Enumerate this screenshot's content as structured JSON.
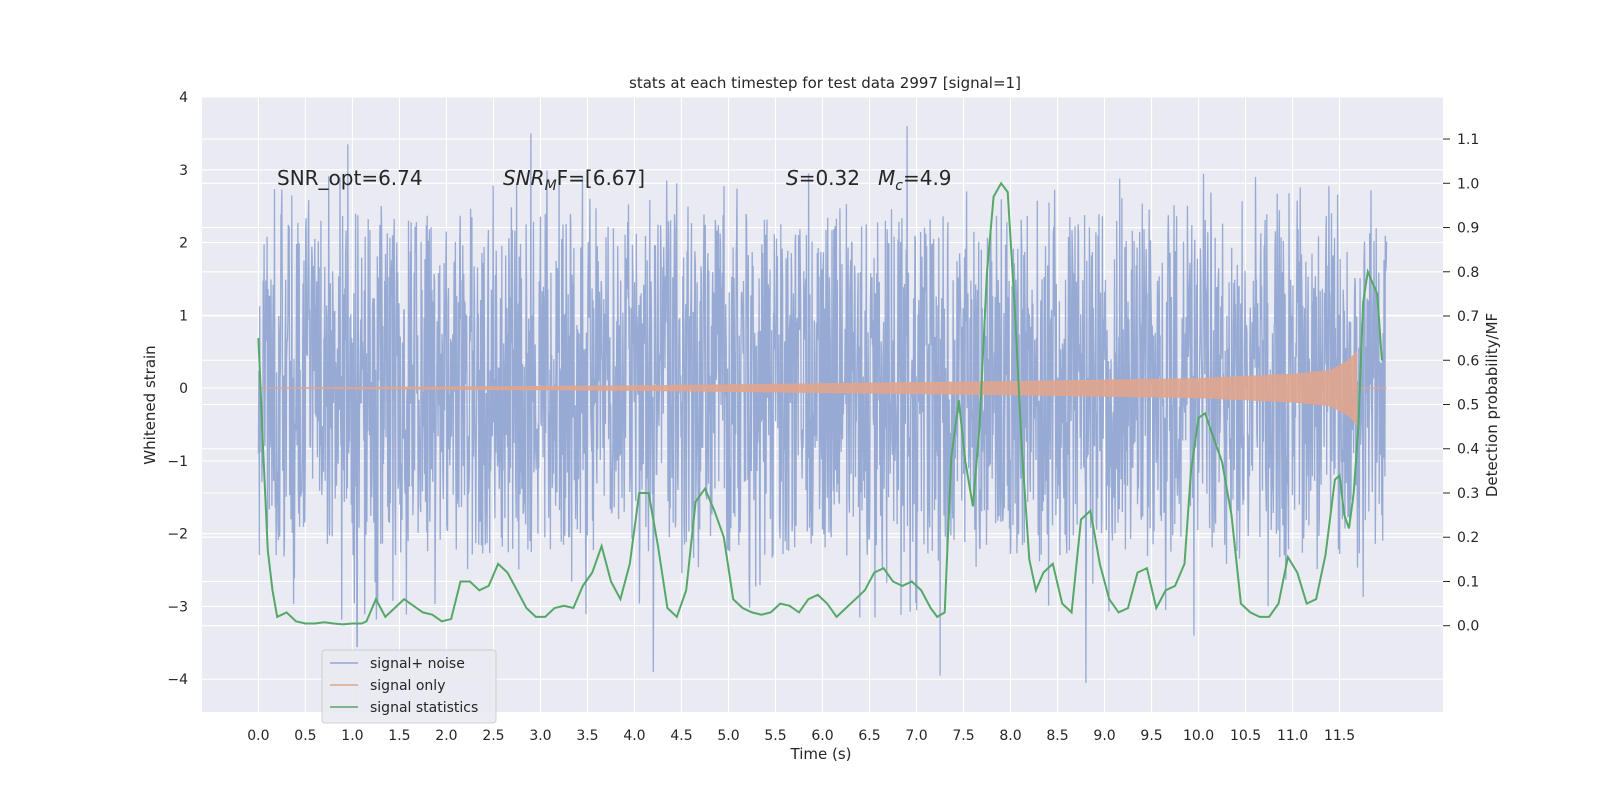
{
  "chart_data": {
    "type": "line",
    "title": "stats at each timestep for test data 2997 [signal=1]",
    "xlabel": "Time (s)",
    "ylabel_left": "Whitened strain",
    "ylabel_right": "Detection probability/MF",
    "xlim": [
      -0.6,
      12.6
    ],
    "ylim_left": [
      -4.45,
      4.0
    ],
    "ylim_right": [
      -0.195,
      1.195
    ],
    "x_ticks": [
      0.0,
      0.5,
      1.0,
      1.5,
      2.0,
      2.5,
      3.0,
      3.5,
      4.0,
      4.5,
      5.0,
      5.5,
      6.0,
      6.5,
      7.0,
      7.5,
      8.0,
      8.5,
      9.0,
      9.5,
      10.0,
      10.5,
      11.0,
      11.5
    ],
    "x_tick_labels": [
      "0.0",
      "0.5",
      "1.0",
      "1.5",
      "2.0",
      "2.5",
      "3.0",
      "3.5",
      "4.0",
      "4.5",
      "5.0",
      "5.5",
      "6.0",
      "6.5",
      "7.0",
      "7.5",
      "8.0",
      "8.5",
      "9.0",
      "9.5",
      "10.0",
      "10.5",
      "11.0",
      "11.5"
    ],
    "y_left_ticks": [
      4,
      3,
      2,
      1,
      0,
      -1,
      -2,
      -3,
      -4
    ],
    "y_left_tick_labels": [
      "4",
      "3",
      "2",
      "1",
      "0",
      "−1",
      "−2",
      "−3",
      "−4"
    ],
    "y_right_ticks": [
      1.1,
      1.0,
      0.9,
      0.8,
      0.7,
      0.6,
      0.5,
      0.4,
      0.3,
      0.2,
      0.1,
      0.0
    ],
    "y_right_tick_labels": [
      "1.1",
      "1.0",
      "0.9",
      "0.8",
      "0.7",
      "0.6",
      "0.5",
      "0.4",
      "0.3",
      "0.2",
      "0.1",
      "0.0"
    ],
    "annotations": {
      "snr_opt": "SNR_opt=6.74",
      "snr_mf_main": "SNR",
      "snr_mf_sub": "M",
      "snr_mf_rest": "F=[6.67]",
      "s_sym": "S",
      "s_val": "=0.32",
      "mc_main": "M",
      "mc_sub": "c",
      "mc_val": "=4.9"
    },
    "legend": {
      "placement": "lower-left",
      "entries": [
        "signal+ noise",
        "signal only",
        "signal statistics"
      ]
    },
    "colors": {
      "background": "#eaeaf2",
      "grid": "#ffffff",
      "noise": "#92a6d2",
      "signal": "#e0a58e",
      "stats": "#55a868"
    },
    "series": [
      {
        "name": "signal+ noise",
        "axis": "left",
        "x_range": [
          0.0,
          12.0
        ],
        "band_typical": [
          -1.6,
          1.6
        ],
        "band_frequent": [
          -2.3,
          2.4
        ],
        "notable_peaks": [
          {
            "t": 0.95,
            "v": 3.35
          },
          {
            "t": 2.9,
            "v": 3.5
          },
          {
            "t": 6.9,
            "v": 3.6
          },
          {
            "t": 1.05,
            "v": -3.55
          },
          {
            "t": 4.2,
            "v": -3.9
          },
          {
            "t": 7.25,
            "v": -3.95
          },
          {
            "t": 8.8,
            "v": -4.05
          },
          {
            "t": 9.95,
            "v": -3.4
          }
        ]
      },
      {
        "name": "signal only",
        "axis": "left",
        "x_range": [
          0.0,
          11.68
        ],
        "envelope": [
          {
            "t": 0.0,
            "a": 0.0
          },
          {
            "t": 2.0,
            "a": 0.015
          },
          {
            "t": 4.0,
            "a": 0.03
          },
          {
            "t": 6.0,
            "a": 0.06
          },
          {
            "t": 8.0,
            "a": 0.09
          },
          {
            "t": 10.0,
            "a": 0.13
          },
          {
            "t": 11.0,
            "a": 0.19
          },
          {
            "t": 11.4,
            "a": 0.24
          },
          {
            "t": 11.6,
            "a": 0.38
          },
          {
            "t": 11.68,
            "a": 0.5
          }
        ]
      },
      {
        "name": "signal statistics",
        "axis": "right",
        "x": [
          0.0,
          0.05,
          0.1,
          0.15,
          0.2,
          0.25,
          0.3,
          0.4,
          0.5,
          0.6,
          0.7,
          0.8,
          0.9,
          1.0,
          1.1,
          1.15,
          1.25,
          1.35,
          1.45,
          1.55,
          1.65,
          1.75,
          1.85,
          1.95,
          2.05,
          2.15,
          2.25,
          2.35,
          2.45,
          2.55,
          2.65,
          2.75,
          2.85,
          2.95,
          3.05,
          3.15,
          3.25,
          3.35,
          3.45,
          3.55,
          3.65,
          3.75,
          3.85,
          3.95,
          4.05,
          4.15,
          4.25,
          4.35,
          4.45,
          4.55,
          4.65,
          4.75,
          4.85,
          4.95,
          5.05,
          5.15,
          5.25,
          5.35,
          5.45,
          5.55,
          5.65,
          5.75,
          5.85,
          5.95,
          6.05,
          6.15,
          6.25,
          6.35,
          6.45,
          6.55,
          6.65,
          6.75,
          6.85,
          6.95,
          7.05,
          7.15,
          7.22,
          7.3,
          7.37,
          7.45,
          7.52,
          7.6,
          7.67,
          7.75,
          7.82,
          7.9,
          7.97,
          8.05,
          8.12,
          8.2,
          8.27,
          8.35,
          8.45,
          8.55,
          8.65,
          8.75,
          8.85,
          8.95,
          9.05,
          9.15,
          9.25,
          9.35,
          9.45,
          9.55,
          9.65,
          9.75,
          9.85,
          9.92,
          10.0,
          10.07,
          10.15,
          10.25,
          10.35,
          10.45,
          10.55,
          10.65,
          10.75,
          10.85,
          10.95,
          11.05,
          11.15,
          11.25,
          11.35,
          11.45,
          11.5,
          11.55,
          11.6,
          11.65,
          11.7,
          11.75,
          11.8,
          11.9,
          11.95
        ],
        "values": [
          0.65,
          0.4,
          0.17,
          0.08,
          0.02,
          0.025,
          0.03,
          0.01,
          0.005,
          0.005,
          0.008,
          0.005,
          0.003,
          0.005,
          0.005,
          0.01,
          0.06,
          0.02,
          0.04,
          0.06,
          0.045,
          0.03,
          0.025,
          0.01,
          0.015,
          0.1,
          0.1,
          0.08,
          0.09,
          0.14,
          0.12,
          0.08,
          0.04,
          0.02,
          0.02,
          0.04,
          0.045,
          0.04,
          0.09,
          0.12,
          0.18,
          0.1,
          0.06,
          0.14,
          0.3,
          0.3,
          0.18,
          0.04,
          0.02,
          0.08,
          0.28,
          0.31,
          0.26,
          0.2,
          0.06,
          0.04,
          0.03,
          0.025,
          0.03,
          0.05,
          0.045,
          0.03,
          0.06,
          0.07,
          0.05,
          0.02,
          0.04,
          0.06,
          0.08,
          0.12,
          0.13,
          0.1,
          0.09,
          0.1,
          0.08,
          0.04,
          0.02,
          0.03,
          0.38,
          0.51,
          0.37,
          0.27,
          0.45,
          0.8,
          0.97,
          1.0,
          0.98,
          0.7,
          0.4,
          0.15,
          0.08,
          0.12,
          0.14,
          0.05,
          0.03,
          0.24,
          0.26,
          0.14,
          0.06,
          0.03,
          0.04,
          0.12,
          0.13,
          0.04,
          0.08,
          0.09,
          0.14,
          0.35,
          0.47,
          0.48,
          0.43,
          0.37,
          0.25,
          0.05,
          0.03,
          0.02,
          0.02,
          0.05,
          0.155,
          0.12,
          0.05,
          0.06,
          0.16,
          0.33,
          0.34,
          0.25,
          0.22,
          0.3,
          0.45,
          0.73,
          0.8,
          0.75,
          0.6
        ]
      }
    ]
  }
}
